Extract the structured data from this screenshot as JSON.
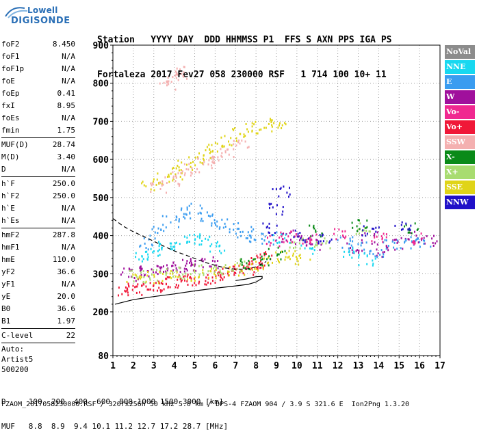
{
  "logo": {
    "line1": "Lowell",
    "line2": "DIGISONDE"
  },
  "header": {
    "labels": "Station   YYYY DAY  DDD HHMMSS P1  FFS S AXN PPS IGA PS",
    "values": "Fortaleza 2017 Fev27 058 230000 RSF   1 714 100 10+ 11"
  },
  "sidebar": {
    "group1": [
      {
        "k": "foF2",
        "v": "8.450"
      },
      {
        "k": "foF1",
        "v": "N/A"
      },
      {
        "k": "foF1p",
        "v": "N/A"
      },
      {
        "k": "foE",
        "v": "N/A"
      },
      {
        "k": "foEp",
        "v": "0.41"
      },
      {
        "k": "fxI",
        "v": "8.95"
      },
      {
        "k": "foEs",
        "v": "N/A"
      },
      {
        "k": "fmin",
        "v": "1.75"
      }
    ],
    "group2": [
      {
        "k": "MUF(D)",
        "v": "28.74"
      },
      {
        "k": "M(D)",
        "v": "3.40"
      },
      {
        "k": "D",
        "v": "N/A"
      }
    ],
    "group3": [
      {
        "k": "h`F",
        "v": "250.0"
      },
      {
        "k": "h`F2",
        "v": "250.0"
      },
      {
        "k": "h`E",
        "v": "N/A"
      },
      {
        "k": "h`Es",
        "v": "N/A"
      }
    ],
    "group4": [
      {
        "k": "hmF2",
        "v": "287.8"
      },
      {
        "k": "hmF1",
        "v": "N/A"
      },
      {
        "k": "hmE",
        "v": "110.0"
      },
      {
        "k": "yF2",
        "v": "36.6"
      },
      {
        "k": "yF1",
        "v": "N/A"
      },
      {
        "k": "yE",
        "v": "20.0"
      },
      {
        "k": "B0",
        "v": "36.6"
      },
      {
        "k": "B1",
        "v": "1.97"
      }
    ],
    "group5": [
      {
        "k": "C-level",
        "v": "22"
      }
    ],
    "auto": [
      "Auto:",
      "Artist5",
      "500200"
    ]
  },
  "legend": [
    {
      "label": "NoVal",
      "color": "#8c8c8c"
    },
    {
      "label": "NNE",
      "color": "#18d8f0"
    },
    {
      "label": "E",
      "color": "#3a9cf0"
    },
    {
      "label": "W",
      "color": "#a0109c"
    },
    {
      "label": "Vo-",
      "color": "#f02890"
    },
    {
      "label": "Vo+",
      "color": "#f01838"
    },
    {
      "label": "SSW",
      "color": "#f4b0b0"
    },
    {
      "label": "X-",
      "color": "#0a8a18"
    },
    {
      "label": "X+",
      "color": "#a8dc70"
    },
    {
      "label": "SSE",
      "color": "#e0d418"
    },
    {
      "label": "NNW",
      "color": "#2010c8"
    }
  ],
  "footer": {
    "d_line": "D     100  200  400  600  800 1000 1500 3000 [km]",
    "muf_line": "MUF   8.8  8.9  9.4 10.1 11.2 12.7 17.2 28.7 [MHz]",
    "bottom": "FZAOM_2017058230000.RSF / 320fx256h 50 kHz 5.0 km / DPS-4 FZAOM 904 / 3.9 S 321.6 E  Ion2Png 1.3.20"
  },
  "chart_data": {
    "type": "scatter",
    "xlim": [
      1,
      17
    ],
    "ylim": [
      80,
      900
    ],
    "x_ticks": [
      "1",
      "2",
      "3",
      "4",
      "5",
      "6",
      "7",
      "8",
      "9",
      "10",
      "11",
      "12",
      "13",
      "14",
      "15",
      "16",
      "17"
    ],
    "y_ticks": [
      "900",
      "800",
      "700",
      "600",
      "500",
      "400",
      "300",
      "200",
      "80"
    ],
    "y_tick_values": [
      900,
      800,
      700,
      600,
      500,
      400,
      300,
      200,
      80
    ],
    "grid": true,
    "series": [
      {
        "name": "Vo+",
        "color": "#f01838",
        "points": [
          [
            1.6,
            258
          ],
          [
            2.0,
            262
          ],
          [
            2.5,
            266
          ],
          [
            3.0,
            270
          ],
          [
            3.5,
            274
          ],
          [
            4.0,
            278
          ],
          [
            4.5,
            282
          ],
          [
            5.0,
            286
          ],
          [
            5.5,
            290
          ],
          [
            6.0,
            295
          ],
          [
            6.5,
            300
          ],
          [
            7.0,
            306
          ],
          [
            7.5,
            314
          ],
          [
            7.8,
            322
          ],
          [
            8.1,
            332
          ],
          [
            8.4,
            345
          ]
        ]
      },
      {
        "name": "W",
        "color": "#a0109c",
        "points": [
          [
            1.8,
            300
          ],
          [
            2.2,
            306
          ],
          [
            2.7,
            310
          ],
          [
            3.2,
            314
          ],
          [
            3.7,
            318
          ],
          [
            4.2,
            321
          ],
          [
            4.7,
            323
          ],
          [
            5.2,
            326
          ],
          [
            5.7,
            330
          ],
          [
            9.4,
            400
          ],
          [
            10.3,
            390
          ],
          [
            10.8,
            380
          ],
          [
            12.8,
            370
          ],
          [
            13.5,
            395
          ],
          [
            14.2,
            360
          ],
          [
            15.0,
            380
          ],
          [
            15.8,
            400
          ],
          [
            16.5,
            390
          ]
        ]
      },
      {
        "name": "SSE",
        "color": "#e0d418",
        "points": [
          [
            2.0,
            290
          ],
          [
            3.0,
            292
          ],
          [
            4.0,
            295
          ],
          [
            5.0,
            300
          ],
          [
            6.0,
            304
          ],
          [
            7.0,
            312
          ],
          [
            8.0,
            325
          ],
          [
            8.8,
            345
          ],
          [
            2.8,
            535
          ],
          [
            3.5,
            550
          ],
          [
            4.0,
            565
          ],
          [
            4.5,
            585
          ],
          [
            5.0,
            600
          ],
          [
            5.5,
            615
          ],
          [
            6.0,
            630
          ],
          [
            6.6,
            650
          ],
          [
            7.2,
            670
          ],
          [
            7.8,
            685
          ],
          [
            8.5,
            690
          ],
          [
            9.0,
            700
          ],
          [
            9.8,
            350
          ],
          [
            10.2,
            340
          ]
        ]
      },
      {
        "name": "SSW",
        "color": "#f4b0b0",
        "points": [
          [
            3.2,
            530
          ],
          [
            3.8,
            545
          ],
          [
            4.3,
            560
          ],
          [
            4.9,
            575
          ],
          [
            5.5,
            590
          ],
          [
            6.0,
            600
          ],
          [
            6.6,
            625
          ],
          [
            7.2,
            640
          ],
          [
            3.6,
            800
          ],
          [
            4.0,
            820
          ],
          [
            4.4,
            830
          ]
        ]
      },
      {
        "name": "E",
        "color": "#3a9cf0",
        "points": [
          [
            2.6,
            380
          ],
          [
            3.2,
            410
          ],
          [
            3.8,
            440
          ],
          [
            4.4,
            460
          ],
          [
            5.0,
            470
          ],
          [
            5.6,
            450
          ],
          [
            6.2,
            430
          ],
          [
            6.8,
            420
          ],
          [
            7.4,
            410
          ],
          [
            8.0,
            400
          ],
          [
            8.6,
            395
          ],
          [
            12.4,
            385
          ],
          [
            13.0,
            370
          ],
          [
            13.8,
            360
          ],
          [
            14.6,
            375
          ],
          [
            15.4,
            385
          ],
          [
            16.2,
            380
          ]
        ]
      },
      {
        "name": "NNE",
        "color": "#18d8f0",
        "points": [
          [
            2.4,
            350
          ],
          [
            3.0,
            360
          ],
          [
            3.6,
            370
          ],
          [
            4.2,
            380
          ],
          [
            4.8,
            390
          ],
          [
            5.4,
            385
          ],
          [
            6.0,
            370
          ],
          [
            9.2,
            395
          ],
          [
            10.5,
            370
          ],
          [
            12.6,
            355
          ],
          [
            13.4,
            340
          ]
        ]
      },
      {
        "name": "X+",
        "color": "#a8dc70",
        "points": [
          [
            2.2,
            295
          ],
          [
            3.2,
            300
          ],
          [
            4.2,
            305
          ],
          [
            5.2,
            310
          ],
          [
            6.2,
            316
          ],
          [
            7.2,
            325
          ],
          [
            10.0,
            385
          ],
          [
            11.2,
            380
          ],
          [
            13.2,
            420
          ]
        ]
      },
      {
        "name": "X-",
        "color": "#0a8a18",
        "points": [
          [
            7.6,
            330
          ],
          [
            8.2,
            340
          ],
          [
            9.0,
            355
          ],
          [
            11.0,
            415
          ],
          [
            13.0,
            430
          ],
          [
            15.5,
            420
          ]
        ]
      },
      {
        "name": "Vo-",
        "color": "#f02890",
        "points": [
          [
            8.8,
            390
          ],
          [
            9.6,
            400
          ],
          [
            10.6,
            395
          ],
          [
            12.2,
            405
          ],
          [
            14.0,
            400
          ],
          [
            16.0,
            395
          ]
        ]
      },
      {
        "name": "NNW",
        "color": "#2010c8",
        "points": [
          [
            8.6,
            420
          ],
          [
            9.0,
            470
          ],
          [
            9.2,
            520
          ],
          [
            10.2,
            400
          ],
          [
            11.4,
            390
          ],
          [
            13.6,
            415
          ],
          [
            15.2,
            430
          ]
        ]
      }
    ],
    "curves": [
      {
        "name": "profile",
        "style": "solid",
        "points": [
          [
            1.1,
            220
          ],
          [
            2,
            232
          ],
          [
            3,
            240
          ],
          [
            4,
            247
          ],
          [
            5,
            255
          ],
          [
            6,
            262
          ],
          [
            7,
            268
          ],
          [
            7.6,
            272
          ],
          [
            8.0,
            278
          ],
          [
            8.3,
            288
          ],
          [
            8.3,
            293
          ],
          [
            8.0,
            292
          ],
          [
            7.5,
            286
          ],
          [
            7.0,
            282
          ]
        ]
      },
      {
        "name": "muf-dashed",
        "style": "dashed",
        "points": [
          [
            1.0,
            445
          ],
          [
            1.5,
            425
          ],
          [
            2.0,
            410
          ],
          [
            2.5,
            398
          ],
          [
            3.0,
            385
          ],
          [
            3.5,
            372
          ],
          [
            4.0,
            360
          ],
          [
            4.5,
            350
          ],
          [
            5.0,
            340
          ],
          [
            5.5,
            330
          ],
          [
            6.0,
            322
          ],
          [
            6.5,
            315
          ],
          [
            7.0,
            312
          ],
          [
            7.5,
            312
          ],
          [
            8.0,
            318
          ],
          [
            8.5,
            332
          ]
        ]
      }
    ]
  }
}
